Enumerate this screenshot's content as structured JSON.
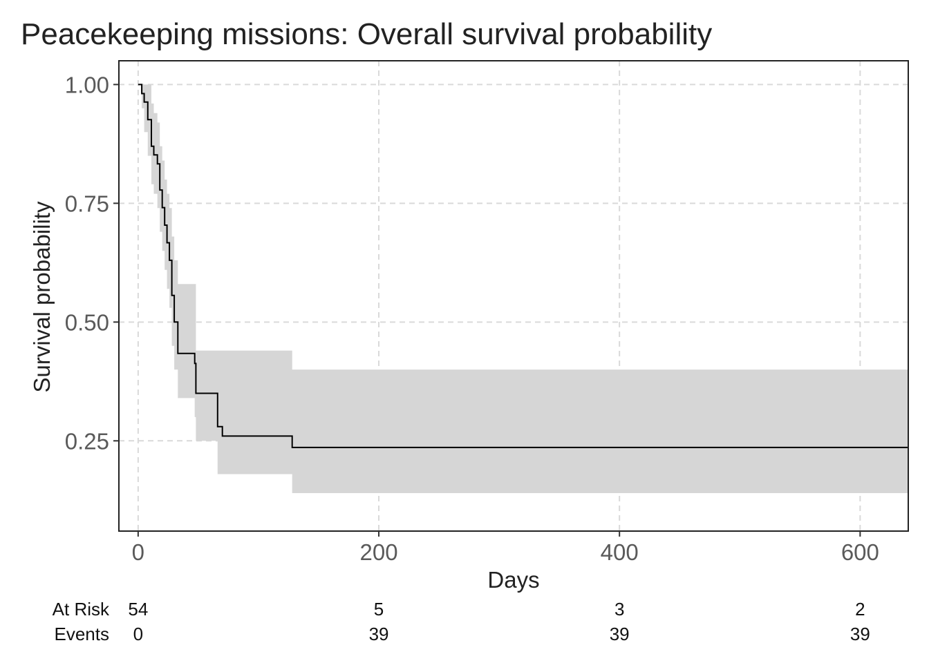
{
  "chart_data": {
    "type": "line",
    "title": "Peacekeeping missions: Overall survival probability",
    "xlabel": "Days",
    "ylabel": "Survival probability",
    "xlim": [
      -16,
      640
    ],
    "ylim": [
      0.06,
      1.05
    ],
    "xticks": [
      0,
      200,
      400,
      600
    ],
    "xtick_labels": [
      "0",
      "200",
      "400",
      "600"
    ],
    "yticks": [
      0.25,
      0.5,
      0.75,
      1.0
    ],
    "ytick_labels": [
      "0.25",
      "0.50",
      "0.75",
      "1.00"
    ],
    "grid": true,
    "legend": "none",
    "line_color": "#000000",
    "band_color": "#d6d6d6",
    "series": [
      {
        "type": "step",
        "x": [
          0,
          3,
          5,
          8,
          11,
          13,
          16,
          18,
          20,
          22,
          24,
          26,
          28,
          30,
          33,
          47,
          48,
          66,
          70,
          128,
          640
        ],
        "y": [
          1.0,
          0.981,
          0.963,
          0.926,
          0.87,
          0.852,
          0.833,
          0.778,
          0.741,
          0.704,
          0.667,
          0.63,
          0.556,
          0.5,
          0.434,
          0.413,
          0.35,
          0.28,
          0.26,
          0.236,
          0.196
        ],
        "lower": [
          1.0,
          0.95,
          0.9,
          0.85,
          0.79,
          0.77,
          0.74,
          0.69,
          0.65,
          0.61,
          0.57,
          0.53,
          0.45,
          0.4,
          0.34,
          0.3,
          0.25,
          0.18,
          0.18,
          0.14,
          0.1
        ],
        "upper": [
          1.0,
          1.0,
          1.0,
          1.0,
          0.96,
          0.94,
          0.92,
          0.87,
          0.84,
          0.8,
          0.77,
          0.74,
          0.68,
          0.63,
          0.58,
          0.58,
          0.44,
          0.44,
          0.44,
          0.4,
          0.37
        ]
      }
    ],
    "risk_table": {
      "rows": [
        "At Risk",
        "Events"
      ],
      "x": [
        0,
        200,
        400,
        600
      ],
      "at_risk": [
        "54",
        "5",
        "3",
        "2"
      ],
      "events": [
        "0",
        "39",
        "39",
        "39"
      ]
    }
  }
}
